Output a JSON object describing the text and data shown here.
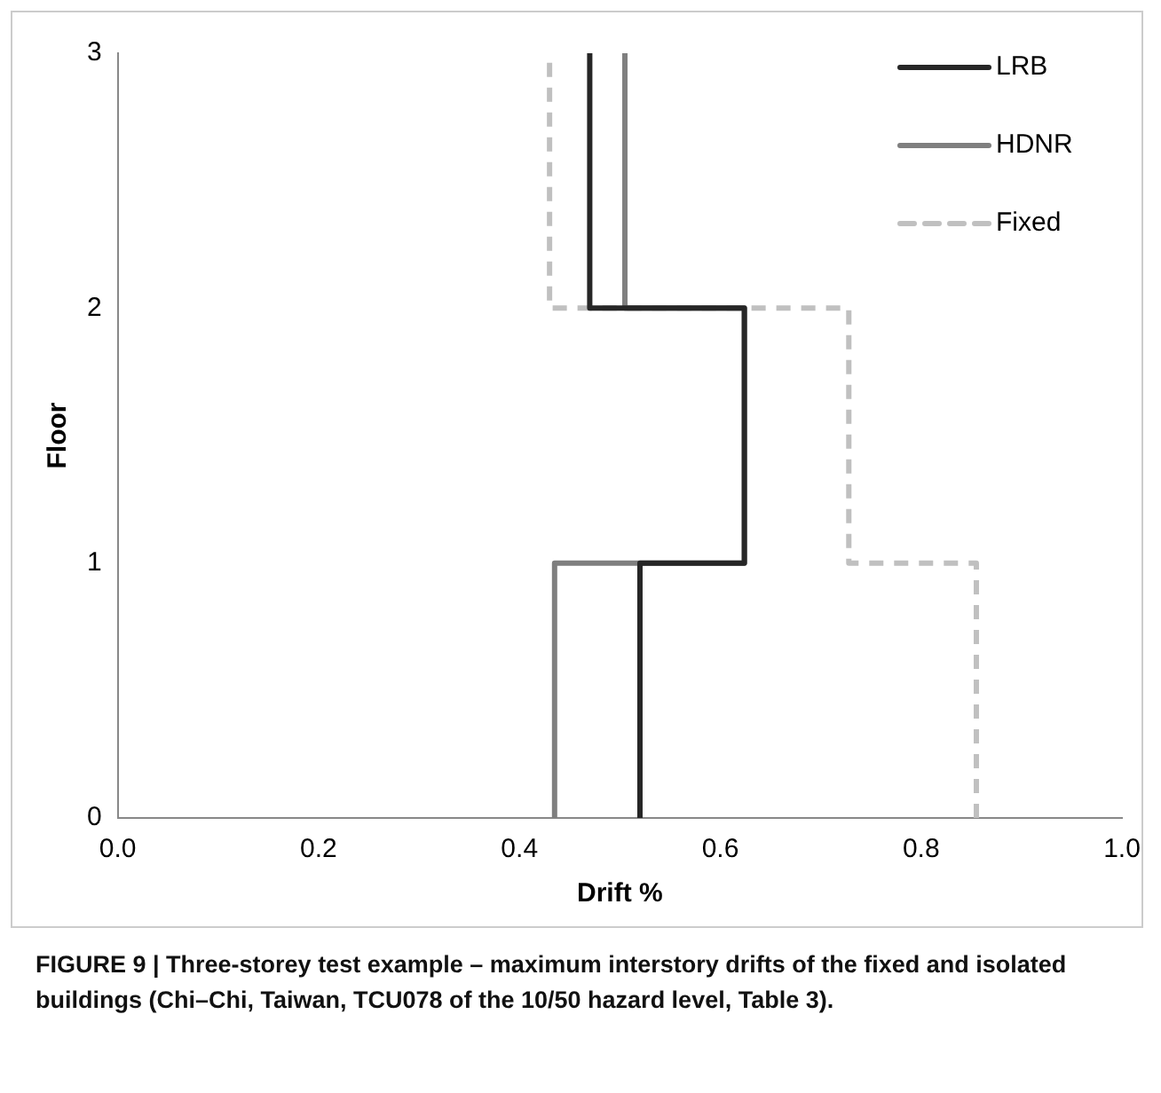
{
  "chart_data": {
    "type": "line",
    "xlabel": "Drift %",
    "ylabel": "Floor",
    "series": [
      {
        "name": "LRB",
        "color": "#262626",
        "line_style": "solid",
        "x": [
          0.52,
          0.52,
          0.624,
          0.624,
          0.47,
          0.47
        ],
        "values": [
          0,
          1,
          1,
          2,
          2,
          3
        ]
      },
      {
        "name": "HDNR",
        "color": "#7f7f7f",
        "line_style": "solid",
        "x": [
          0.435,
          0.435,
          0.624,
          0.624,
          0.505,
          0.505
        ],
        "values": [
          0,
          1,
          1,
          2,
          2,
          3
        ]
      },
      {
        "name": "Fixed",
        "color": "#c0c0c0",
        "line_style": "dashed",
        "x": [
          0.855,
          0.855,
          0.728,
          0.728,
          0.43,
          0.43
        ],
        "values": [
          0,
          1,
          1,
          2,
          2,
          3
        ]
      }
    ],
    "xlim": [
      0,
      1
    ],
    "xticks": [
      {
        "value": 0,
        "label": "0.0"
      },
      {
        "value": 0.2,
        "label": "0.2"
      },
      {
        "value": 0.4,
        "label": "0.4"
      },
      {
        "value": 0.6,
        "label": "0.6"
      },
      {
        "value": 0.8,
        "label": "0.8"
      },
      {
        "value": 1,
        "label": "1.0"
      }
    ],
    "ylim": [
      0,
      3
    ],
    "yticks": [
      0,
      1,
      2,
      3
    ],
    "grid": false,
    "legend": "top right",
    "marker": "none",
    "annotations": [
      "FIGURE 9 | Three-storey test example – maximum interstory drifts of the fixed and isolated buildings (Chi–Chi, Taiwan, TCU078 of the 10/50 hazard level, Table 3)."
    ]
  }
}
